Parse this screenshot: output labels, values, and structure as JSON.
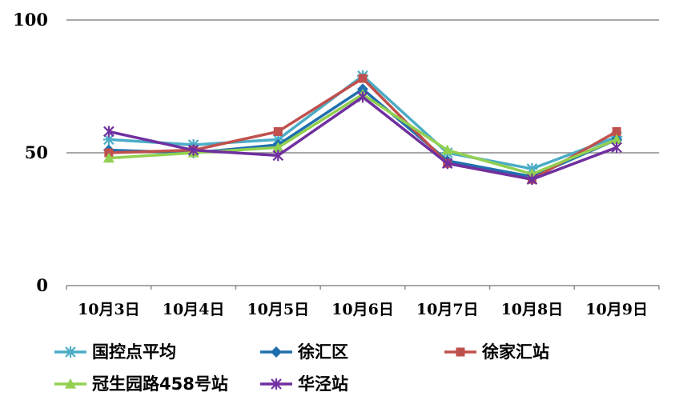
{
  "chart_data": {
    "type": "line",
    "categories": [
      "10月3日",
      "10月4日",
      "10月5日",
      "10月6日",
      "10月7日",
      "10月8日",
      "10月9日"
    ],
    "ylim": [
      0,
      100
    ],
    "yticks": [
      0,
      50,
      100
    ],
    "grid": true,
    "legend_position": "bottom",
    "series": [
      {
        "name": "国控点平均",
        "color": "#4bacc6",
        "marker": "star-asterisk",
        "values": [
          55,
          53,
          55,
          79,
          50,
          44,
          56
        ]
      },
      {
        "name": "徐汇区",
        "color": "#1f6fae",
        "marker": "diamond",
        "values": [
          51,
          50,
          53,
          74,
          47,
          41,
          55
        ]
      },
      {
        "name": "徐家汇站",
        "color": "#c0504d",
        "marker": "square",
        "values": [
          50,
          51,
          58,
          78,
          46,
          40,
          58
        ]
      },
      {
        "name": "冠生园路458号站",
        "color": "#92d050",
        "marker": "triangle",
        "values": [
          48,
          50,
          52,
          72,
          51,
          42,
          55
        ]
      },
      {
        "name": "华泾站",
        "color": "#7030a0",
        "marker": "asterisk",
        "values": [
          58,
          51,
          49,
          71,
          46,
          40,
          52
        ]
      }
    ]
  }
}
